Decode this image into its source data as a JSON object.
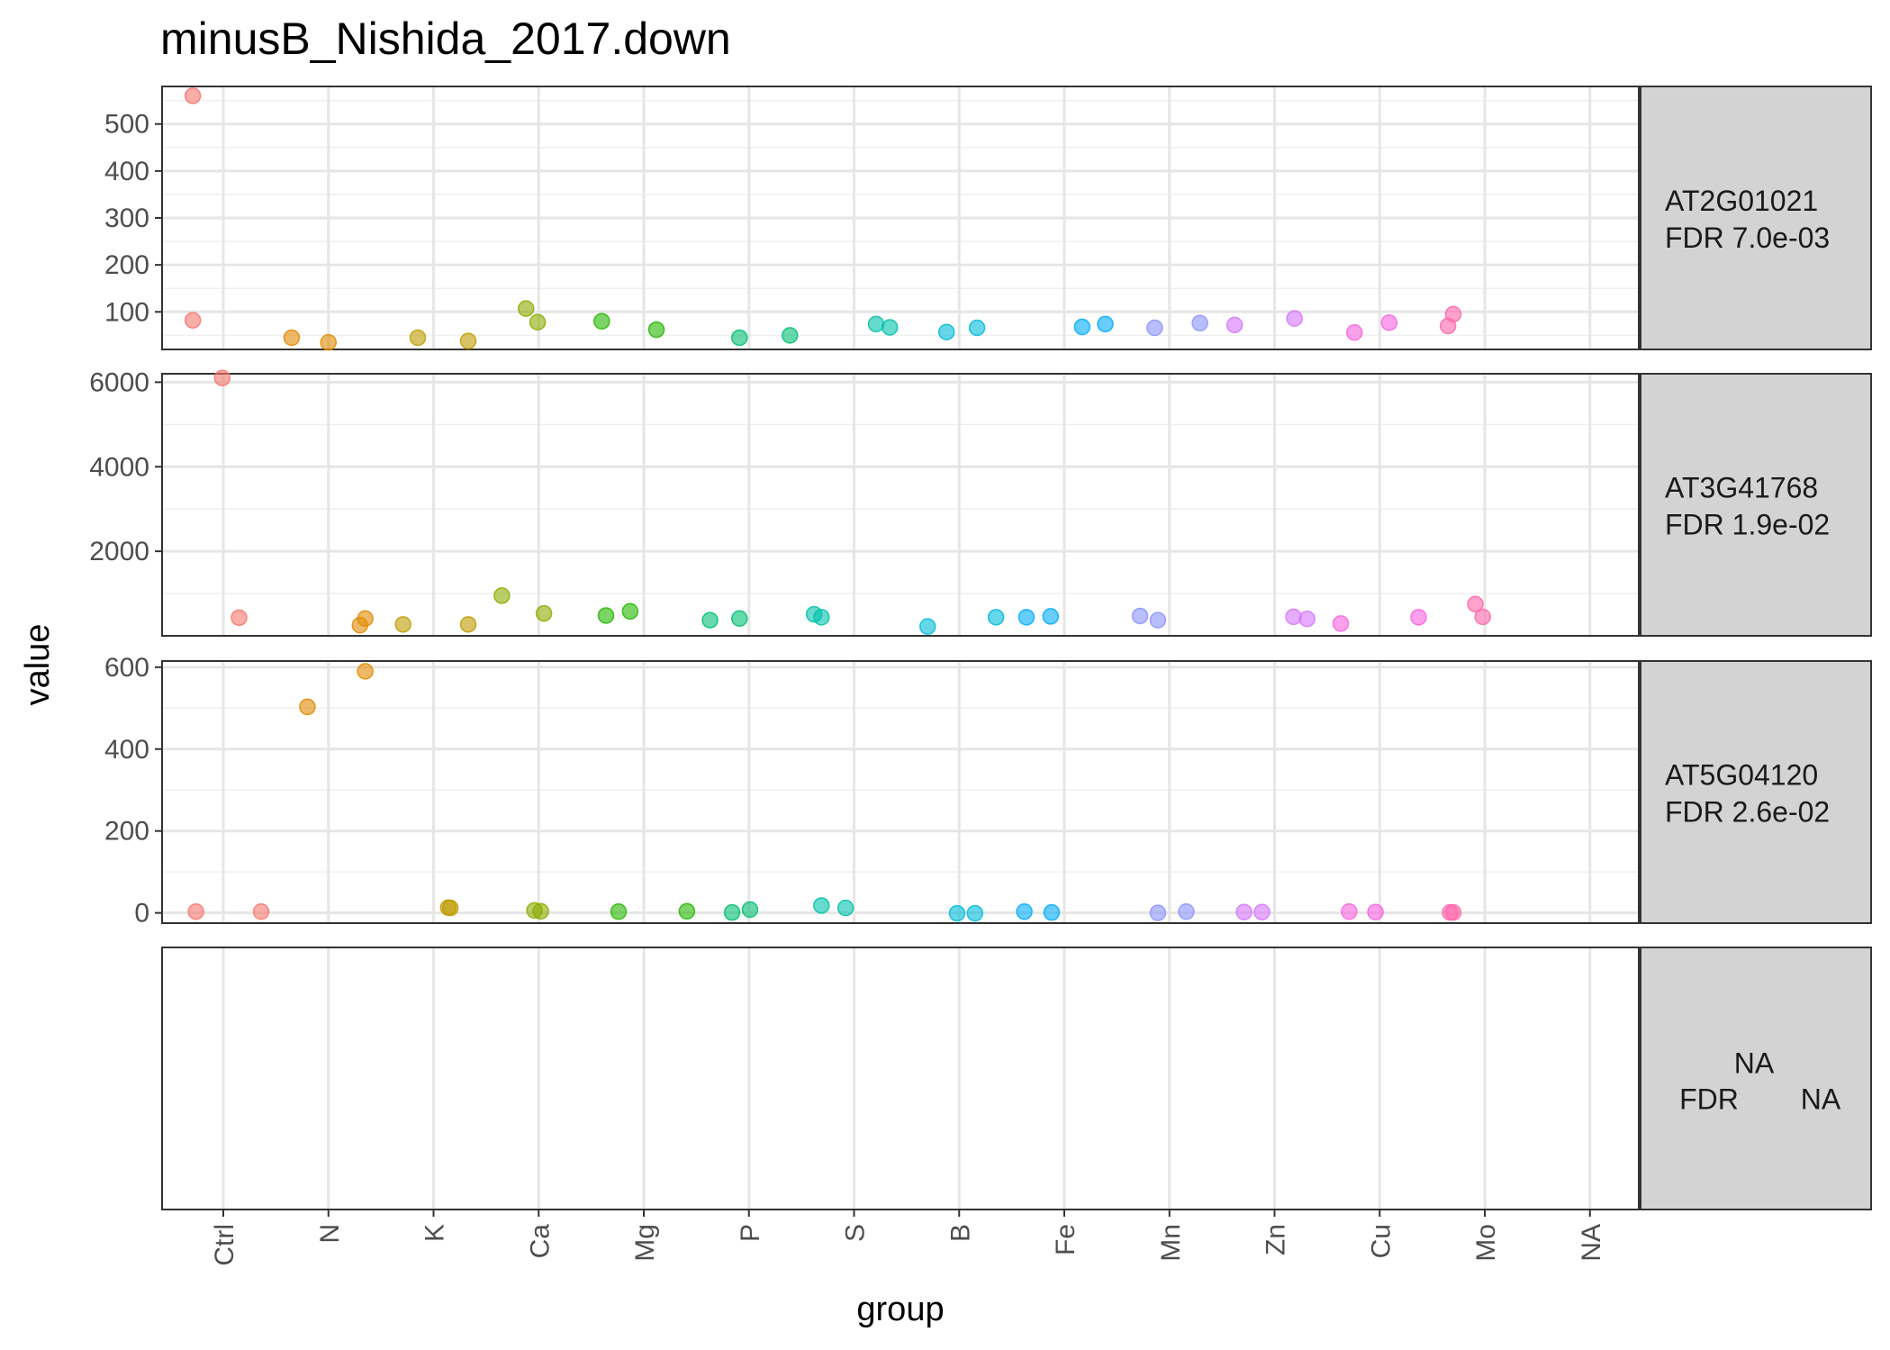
{
  "chart_data": {
    "type": "scatter",
    "title": "minusB_Nishida_2017.down",
    "xlabel": "group",
    "ylabel": "value",
    "categories": [
      "Ctrl",
      "N",
      "K",
      "Ca",
      "Mg",
      "P",
      "S",
      "B",
      "Fe",
      "Mn",
      "Zn",
      "Cu",
      "Mo",
      "NA"
    ],
    "colors": {
      "Ctrl": "#F8766D",
      "N": "#E18A00",
      "K": "#BE9C00",
      "Ca": "#8CAB00",
      "Mg": "#24B700",
      "P": "#00BE70",
      "S": "#00C1AB",
      "B": "#00BBDA",
      "Fe": "#00ACFC",
      "Mn": "#8B93FF",
      "Zn": "#D575FE",
      "Cu": "#F962DD",
      "Mo": "#FF65AC"
    },
    "grid": true,
    "legend": "none",
    "panels": [
      {
        "gene": "AT2G01021",
        "fdr": "FDR 7.0e-03",
        "ylim": [
          20,
          580
        ],
        "yticks": [
          100,
          200,
          300,
          400,
          500
        ],
        "points": [
          {
            "g": "Ctrl",
            "x": 0.71,
            "y": 560
          },
          {
            "g": "Ctrl",
            "x": 0.71,
            "y": 82
          },
          {
            "g": "N",
            "x": 1.65,
            "y": 45
          },
          {
            "g": "N",
            "x": 2.0,
            "y": 35
          },
          {
            "g": "K",
            "x": 2.85,
            "y": 45
          },
          {
            "g": "K",
            "x": 3.33,
            "y": 38
          },
          {
            "g": "Ca",
            "x": 3.88,
            "y": 107
          },
          {
            "g": "Ca",
            "x": 3.99,
            "y": 78
          },
          {
            "g": "Mg",
            "x": 4.6,
            "y": 80
          },
          {
            "g": "Mg",
            "x": 5.12,
            "y": 62
          },
          {
            "g": "P",
            "x": 5.91,
            "y": 45
          },
          {
            "g": "P",
            "x": 6.39,
            "y": 50
          },
          {
            "g": "S",
            "x": 7.21,
            "y": 74
          },
          {
            "g": "S",
            "x": 7.34,
            "y": 67
          },
          {
            "g": "B",
            "x": 7.88,
            "y": 57
          },
          {
            "g": "B",
            "x": 8.17,
            "y": 66
          },
          {
            "g": "Fe",
            "x": 9.17,
            "y": 68
          },
          {
            "g": "Fe",
            "x": 9.39,
            "y": 74
          },
          {
            "g": "Mn",
            "x": 9.86,
            "y": 66
          },
          {
            "g": "Mn",
            "x": 10.29,
            "y": 76
          },
          {
            "g": "Zn",
            "x": 10.62,
            "y": 72
          },
          {
            "g": "Zn",
            "x": 11.19,
            "y": 86
          },
          {
            "g": "Cu",
            "x": 11.76,
            "y": 56
          },
          {
            "g": "Cu",
            "x": 12.09,
            "y": 77
          },
          {
            "g": "Mo",
            "x": 12.65,
            "y": 70
          },
          {
            "g": "Mo",
            "x": 12.7,
            "y": 95
          }
        ]
      },
      {
        "gene": "AT3G41768",
        "fdr": "FDR 1.9e-02",
        "ylim": [
          0,
          6200
        ],
        "yticks": [
          2000,
          4000,
          6000
        ],
        "points": [
          {
            "g": "Ctrl",
            "x": 0.99,
            "y": 6100
          },
          {
            "g": "Ctrl",
            "x": 1.15,
            "y": 430
          },
          {
            "g": "N",
            "x": 2.3,
            "y": 250
          },
          {
            "g": "N",
            "x": 2.35,
            "y": 410
          },
          {
            "g": "K",
            "x": 2.71,
            "y": 270
          },
          {
            "g": "K",
            "x": 3.33,
            "y": 270
          },
          {
            "g": "Ca",
            "x": 3.65,
            "y": 950
          },
          {
            "g": "Ca",
            "x": 4.05,
            "y": 530
          },
          {
            "g": "Mg",
            "x": 4.64,
            "y": 480
          },
          {
            "g": "Mg",
            "x": 4.87,
            "y": 580
          },
          {
            "g": "P",
            "x": 5.63,
            "y": 370
          },
          {
            "g": "P",
            "x": 5.91,
            "y": 410
          },
          {
            "g": "S",
            "x": 6.62,
            "y": 510
          },
          {
            "g": "S",
            "x": 6.69,
            "y": 440
          },
          {
            "g": "B",
            "x": 7.7,
            "y": 220
          },
          {
            "g": "B",
            "x": 8.35,
            "y": 440
          },
          {
            "g": "Fe",
            "x": 8.64,
            "y": 440
          },
          {
            "g": "Fe",
            "x": 8.87,
            "y": 460
          },
          {
            "g": "Mn",
            "x": 9.72,
            "y": 470
          },
          {
            "g": "Mn",
            "x": 9.89,
            "y": 370
          },
          {
            "g": "Zn",
            "x": 11.18,
            "y": 450
          },
          {
            "g": "Zn",
            "x": 11.31,
            "y": 400
          },
          {
            "g": "Cu",
            "x": 11.63,
            "y": 290
          },
          {
            "g": "Cu",
            "x": 12.37,
            "y": 440
          },
          {
            "g": "Mo",
            "x": 12.91,
            "y": 750
          },
          {
            "g": "Mo",
            "x": 12.98,
            "y": 450
          }
        ]
      },
      {
        "gene": "AT5G04120",
        "fdr": "FDR 2.6e-02",
        "ylim": [
          -25,
          615
        ],
        "yticks": [
          0,
          200,
          400,
          600
        ],
        "points": [
          {
            "g": "Ctrl",
            "x": 0.74,
            "y": 3
          },
          {
            "g": "Ctrl",
            "x": 1.36,
            "y": 3
          },
          {
            "g": "N",
            "x": 1.8,
            "y": 503
          },
          {
            "g": "N",
            "x": 2.35,
            "y": 590
          },
          {
            "g": "K",
            "x": 3.14,
            "y": 13
          },
          {
            "g": "K",
            "x": 3.16,
            "y": 12
          },
          {
            "g": "Ca",
            "x": 3.96,
            "y": 6
          },
          {
            "g": "Ca",
            "x": 4.02,
            "y": 4
          },
          {
            "g": "Mg",
            "x": 4.76,
            "y": 3
          },
          {
            "g": "Mg",
            "x": 5.41,
            "y": 4
          },
          {
            "g": "P",
            "x": 5.84,
            "y": 1
          },
          {
            "g": "P",
            "x": 6.01,
            "y": 8
          },
          {
            "g": "S",
            "x": 6.69,
            "y": 18
          },
          {
            "g": "S",
            "x": 6.92,
            "y": 12
          },
          {
            "g": "B",
            "x": 7.98,
            "y": -1
          },
          {
            "g": "B",
            "x": 8.15,
            "y": -1
          },
          {
            "g": "Fe",
            "x": 8.62,
            "y": 3
          },
          {
            "g": "Fe",
            "x": 8.88,
            "y": 1
          },
          {
            "g": "Mn",
            "x": 9.89,
            "y": 0
          },
          {
            "g": "Mn",
            "x": 10.16,
            "y": 3
          },
          {
            "g": "Zn",
            "x": 10.71,
            "y": 2
          },
          {
            "g": "Zn",
            "x": 10.88,
            "y": 2
          },
          {
            "g": "Cu",
            "x": 11.71,
            "y": 3
          },
          {
            "g": "Cu",
            "x": 11.96,
            "y": 2
          },
          {
            "g": "Mo",
            "x": 12.67,
            "y": 1
          },
          {
            "g": "Mo",
            "x": 12.7,
            "y": 1
          }
        ]
      },
      {
        "gene": "NA",
        "fdr": "NA",
        "fdr_prefix": "FDR",
        "ylim": [
          0,
          1
        ],
        "yticks": [],
        "points": []
      }
    ]
  }
}
